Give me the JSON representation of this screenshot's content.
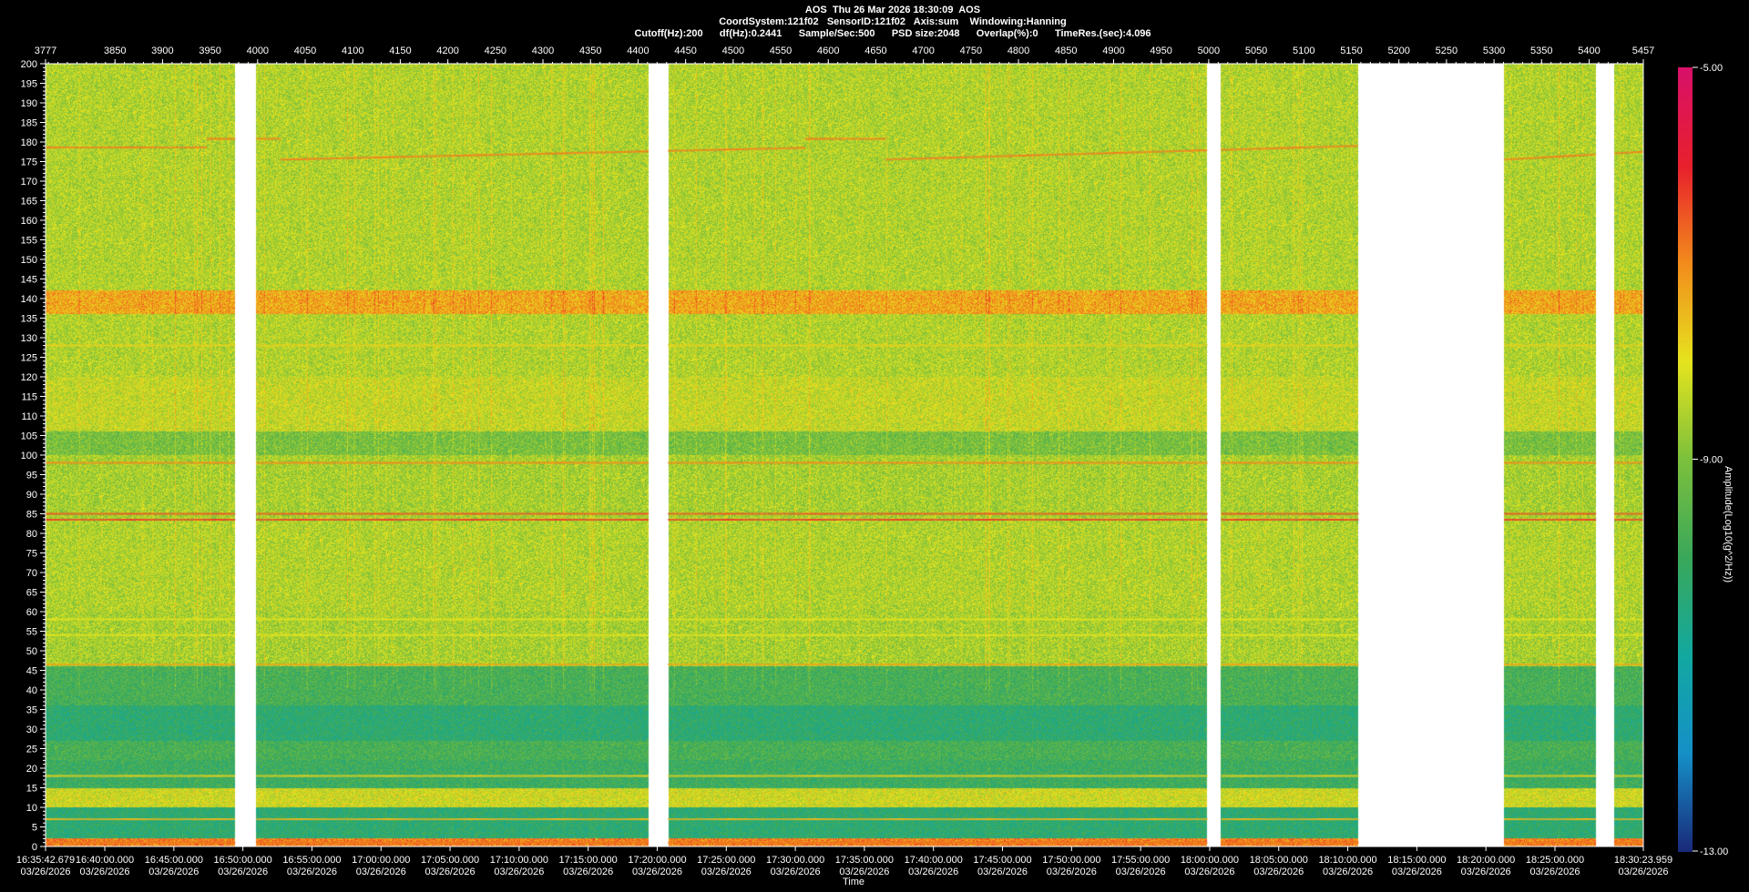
{
  "header": {
    "line1": "AOS  Thu 26 Mar 2026 18:30:09  AOS",
    "line2": "CoordSystem:121f02   SensorID:121f02   Axis:sum    Windowing:Hanning",
    "line3": "Cutoff(Hz):200      df(Hz):0.2441      Sample/Sec:500      PSD size:2048      Overlap(%):0      TimeRes.(sec):4.096"
  },
  "colors": {
    "background": "#000000",
    "gap": "#ffffff",
    "colormap": [
      "#1a2a7a",
      "#1590c8",
      "#12a8a0",
      "#3aa85a",
      "#7cc03c",
      "#e6e41e",
      "#f28c1c",
      "#e8202c",
      "#d8106a"
    ]
  },
  "chart_data": {
    "type": "heatmap",
    "title": "AOS  Thu 26 Mar 2026 18:30:09  AOS",
    "xlabel": "Time",
    "ylabel": "",
    "colorbar_label": "Amplitude(Log10(g^2/Hz))",
    "colorbar_range": [
      -13.0,
      -5.0
    ],
    "colorbar_ticks": [
      "-5.00",
      "-9.00",
      "-13.00"
    ],
    "ylim": [
      0,
      200
    ],
    "y_ticks": [
      0,
      5,
      10,
      15,
      20,
      25,
      30,
      35,
      40,
      45,
      50,
      55,
      60,
      65,
      70,
      75,
      80,
      85,
      90,
      95,
      100,
      105,
      110,
      115,
      120,
      125,
      130,
      135,
      140,
      145,
      150,
      155,
      160,
      165,
      170,
      175,
      180,
      185,
      190,
      195,
      200
    ],
    "x_range_seconds": [
      0,
      6941.28
    ],
    "top_axis": {
      "range": [
        3777,
        5457
      ],
      "ticks": [
        3777,
        3850,
        3900,
        3950,
        4000,
        4050,
        4100,
        4150,
        4200,
        4250,
        4300,
        4350,
        4400,
        4450,
        4500,
        4550,
        4600,
        4650,
        4700,
        4750,
        4800,
        4850,
        4900,
        4950,
        5000,
        5050,
        5100,
        5150,
        5200,
        5250,
        5300,
        5350,
        5400,
        5457
      ]
    },
    "time_ticks": [
      {
        "t": 0,
        "time": "16:35:42.679",
        "date": "03/26/2026"
      },
      {
        "t": 257.32,
        "time": "16:40:00.000",
        "date": "03/26/2026"
      },
      {
        "t": 557.32,
        "time": "16:45:00.000",
        "date": "03/26/2026"
      },
      {
        "t": 857.32,
        "time": "16:50:00.000",
        "date": "03/26/2026"
      },
      {
        "t": 1157.32,
        "time": "16:55:00.000",
        "date": "03/26/2026"
      },
      {
        "t": 1457.32,
        "time": "17:00:00.000",
        "date": "03/26/2026"
      },
      {
        "t": 1757.32,
        "time": "17:05:00.000",
        "date": "03/26/2026"
      },
      {
        "t": 2057.32,
        "time": "17:10:00.000",
        "date": "03/26/2026"
      },
      {
        "t": 2357.32,
        "time": "17:15:00.000",
        "date": "03/26/2026"
      },
      {
        "t": 2657.32,
        "time": "17:20:00.000",
        "date": "03/26/2026"
      },
      {
        "t": 2957.32,
        "time": "17:25:00.000",
        "date": "03/26/2026"
      },
      {
        "t": 3257.32,
        "time": "17:30:00.000",
        "date": "03/26/2026"
      },
      {
        "t": 3557.32,
        "time": "17:35:00.000",
        "date": "03/26/2026"
      },
      {
        "t": 3857.32,
        "time": "17:40:00.000",
        "date": "03/26/2026"
      },
      {
        "t": 4157.32,
        "time": "17:45:00.000",
        "date": "03/26/2026"
      },
      {
        "t": 4457.32,
        "time": "17:50:00.000",
        "date": "03/26/2026"
      },
      {
        "t": 4757.32,
        "time": "17:55:00.000",
        "date": "03/26/2026"
      },
      {
        "t": 5057.32,
        "time": "18:00:00.000",
        "date": "03/26/2026"
      },
      {
        "t": 5357.32,
        "time": "18:05:00.000",
        "date": "03/26/2026"
      },
      {
        "t": 5657.32,
        "time": "18:10:00.000",
        "date": "03/26/2026"
      },
      {
        "t": 5957.32,
        "time": "18:15:00.000",
        "date": "03/26/2026"
      },
      {
        "t": 6257.32,
        "time": "18:20:00.000",
        "date": "03/26/2026"
      },
      {
        "t": 6557.32,
        "time": "18:25:00.000",
        "date": "03/26/2026"
      },
      {
        "t": 6941.28,
        "time": "18:30:23.959",
        "date": "03/26/2026"
      }
    ],
    "gaps_seconds": [
      [
        825,
        915
      ],
      [
        2620,
        2705
      ],
      [
        5047,
        5107
      ],
      [
        5704,
        6337
      ],
      [
        6735,
        6815
      ]
    ],
    "bands": [
      {
        "f_min": 0,
        "f_max": 2,
        "level": -6.9
      },
      {
        "f_min": 2,
        "f_max": 10,
        "level": -10.3
      },
      {
        "f_min": 10,
        "f_max": 15,
        "level": -8.2
      },
      {
        "f_min": 15,
        "f_max": 22,
        "level": -10.0
      },
      {
        "f_min": 22,
        "f_max": 27,
        "level": -9.8
      },
      {
        "f_min": 27,
        "f_max": 36,
        "level": -10.3
      },
      {
        "f_min": 36,
        "f_max": 46,
        "level": -9.8
      },
      {
        "f_min": 46,
        "f_max": 60,
        "level": -8.6
      },
      {
        "f_min": 60,
        "f_max": 84,
        "level": -8.5
      },
      {
        "f_min": 84,
        "f_max": 100,
        "level": -8.6
      },
      {
        "f_min": 100,
        "f_max": 106,
        "level": -9.1
      },
      {
        "f_min": 106,
        "f_max": 120,
        "level": -8.3
      },
      {
        "f_min": 120,
        "f_max": 136,
        "level": -8.5
      },
      {
        "f_min": 136,
        "f_max": 142,
        "level": -7.3
      },
      {
        "f_min": 142,
        "f_max": 200,
        "level": -8.5
      }
    ],
    "lines": [
      {
        "freq": 1,
        "level": -6.8
      },
      {
        "freq": 7,
        "level": -7.5
      },
      {
        "freq": 18,
        "level": -7.8
      },
      {
        "freq": 46.5,
        "level": -7.3
      },
      {
        "freq": 54,
        "level": -8.0
      },
      {
        "freq": 58,
        "level": -8.0
      },
      {
        "freq": 83.5,
        "level": -6.3
      },
      {
        "freq": 85,
        "level": -6.5
      },
      {
        "freq": 98,
        "level": -7.0
      },
      {
        "freq": 128,
        "level": -7.8
      }
    ],
    "drift_tone": [
      {
        "t_start": 0,
        "t_end": 700,
        "f_start": 178.6,
        "f_end": 178.6
      },
      {
        "t_start": 700,
        "t_end": 1020,
        "f_start": 180.8,
        "f_end": 180.8
      },
      {
        "t_start": 1020,
        "t_end": 3300,
        "f_start": 175.5,
        "f_end": 178.5
      },
      {
        "t_start": 3300,
        "t_end": 3650,
        "f_start": 180.8,
        "f_end": 180.8
      },
      {
        "t_start": 3650,
        "t_end": 5700,
        "f_start": 175.5,
        "f_end": 179.0
      },
      {
        "t_start": 6337,
        "t_end": 6941,
        "f_start": 175.5,
        "f_end": 177.5
      }
    ]
  }
}
